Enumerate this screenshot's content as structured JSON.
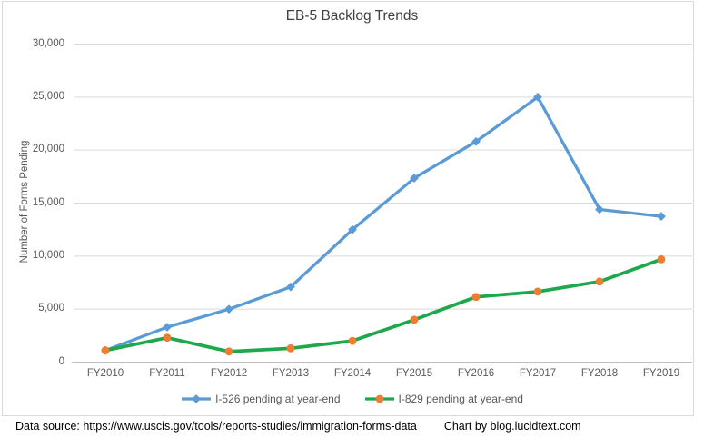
{
  "chart_data": {
    "type": "line",
    "title": "EB-5 Backlog Trends",
    "ylabel": "Number of Forms Pending",
    "xlabel": "",
    "categories": [
      "FY2010",
      "FY2011",
      "FY2012",
      "FY2013",
      "FY2014",
      "FY2015",
      "FY2016",
      "FY2017",
      "FY2018",
      "FY2019"
    ],
    "series": [
      {
        "name": "I-526 pending at year-end",
        "color": "#5B9BD5",
        "marker": "diamond",
        "marker_color": "#5B9BD5",
        "values": [
          1100,
          3300,
          5000,
          7100,
          12500,
          17350,
          20800,
          25000,
          14400,
          13750
        ]
      },
      {
        "name": "I-829 pending at year-end",
        "color": "#1EA84C",
        "marker": "circle",
        "marker_color": "#ED7D31",
        "values": [
          1100,
          2300,
          1000,
          1300,
          2000,
          4000,
          6150,
          6650,
          7600,
          9700
        ]
      }
    ],
    "ylim": [
      0,
      30000
    ],
    "ytick_interval": 5000,
    "ytick_labels": [
      "0",
      "5,000",
      "10,000",
      "15,000",
      "20,000",
      "25,000",
      "30,000"
    ],
    "grid": true,
    "legend_position": "bottom"
  },
  "colors": {
    "gridline": "#D9D9D9",
    "axis_line": "#C0C0C0",
    "frame_border": "#D9D9D9",
    "title_text": "#404040",
    "tick_text": "#595959",
    "footer_text": "#000000"
  },
  "footer": {
    "data_source": "Data source: https://www.uscis.gov/tools/reports-studies/immigration-forms-data",
    "credit": "Chart by blog.lucidtext.com"
  }
}
